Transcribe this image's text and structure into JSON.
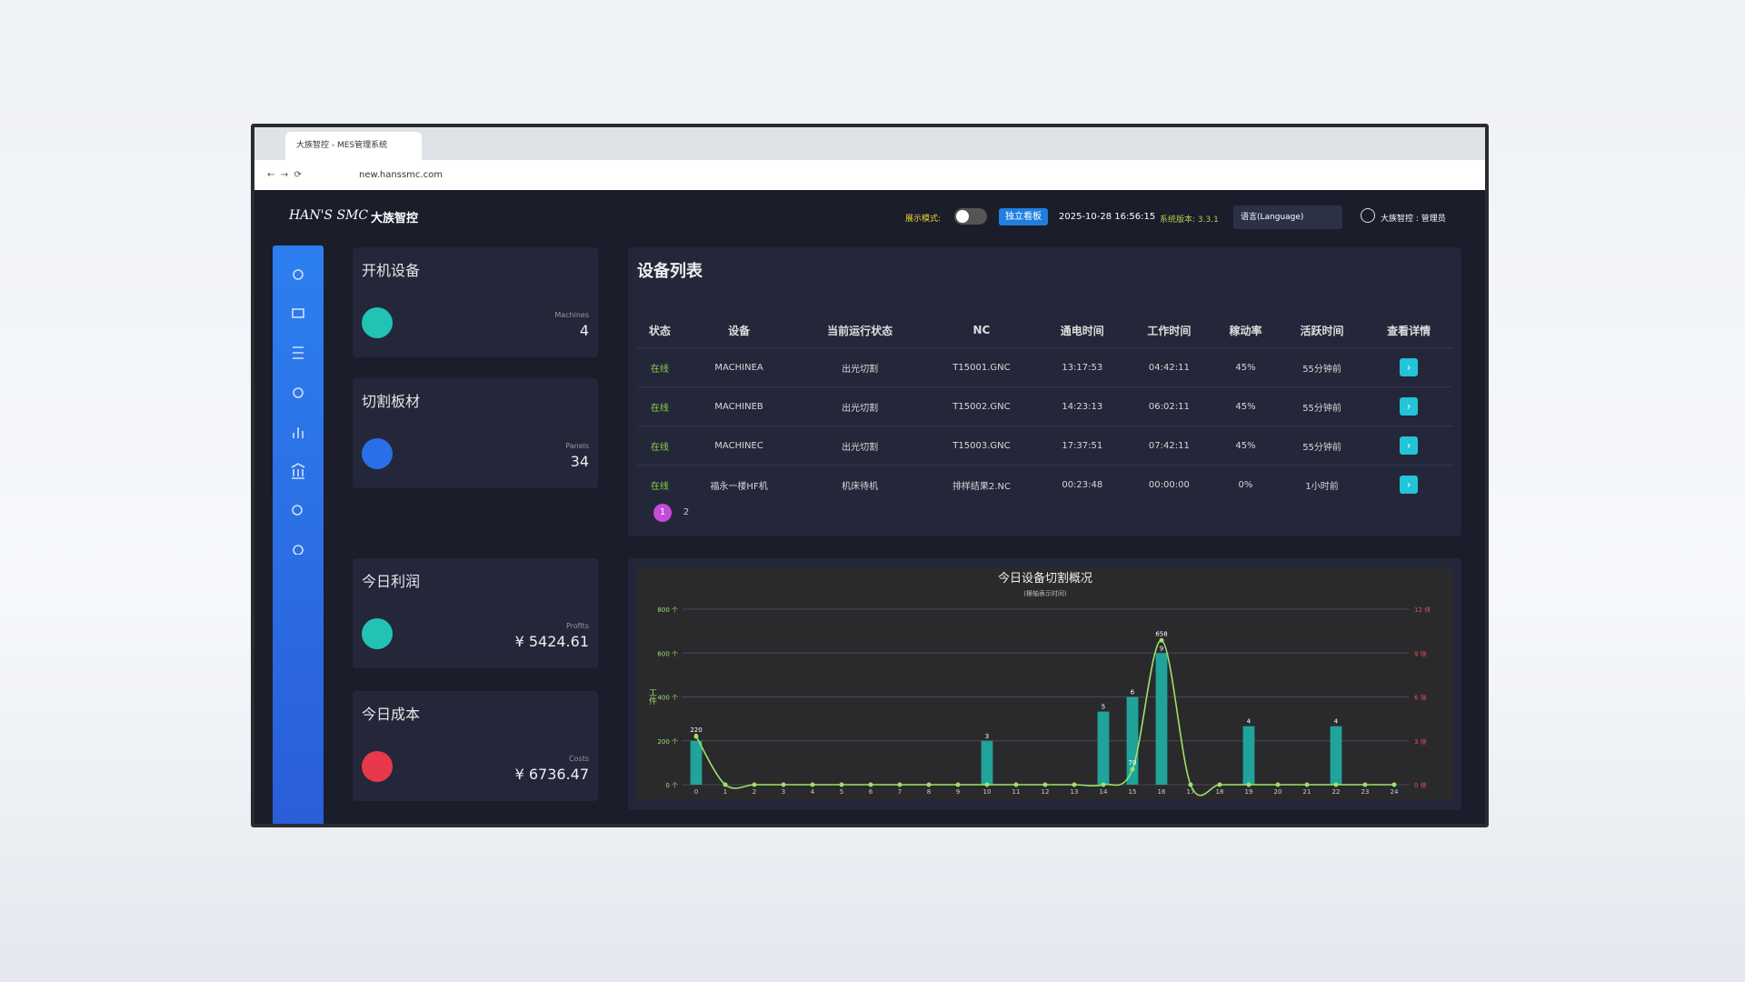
{
  "browser": {
    "tab_title": "大族智控 - MES管理系统",
    "url": "new.hanssmc.com"
  },
  "header": {
    "logo": "HAN'S SMC",
    "logo_cn": "大族智控",
    "display_mode": "展示模式:",
    "board_button": "独立看板",
    "datetime": "2025-10-28 16:56:15",
    "version": "系统版本: 3.3.1",
    "language": "语言(Language)",
    "user": "大族智控 : 管理员"
  },
  "cards": [
    {
      "title": "开机设备",
      "label": "Machines",
      "value": "4"
    },
    {
      "title": "切割板材",
      "label": "Panels",
      "value": "34"
    },
    {
      "title": "今日利润",
      "label": "Profits",
      "value": "¥ 5424.61"
    },
    {
      "title": "今日成本",
      "label": "Costs",
      "value": "¥ 6736.47"
    }
  ],
  "table": {
    "title": "设备列表",
    "columns": [
      "状态",
      "设备",
      "当前运行状态",
      "NC",
      "通电时间",
      "工作时间",
      "稼动率",
      "活跃时间",
      "查看详情"
    ],
    "rows": [
      [
        "在线",
        "MACHINEA",
        "出光切割",
        "T15001.GNC",
        "13:17:53",
        "04:42:11",
        "45%",
        "55分钟前"
      ],
      [
        "在线",
        "MACHINEB",
        "出光切割",
        "T15002.GNC",
        "14:23:13",
        "06:02:11",
        "45%",
        "55分钟前"
      ],
      [
        "在线",
        "MACHINEC",
        "出光切割",
        "T15003.GNC",
        "17:37:51",
        "07:42:11",
        "45%",
        "55分钟前"
      ],
      [
        "在线",
        "福永一楼HF机",
        "机床待机",
        "排样结果2.NC",
        "00:23:48",
        "00:00:00",
        "0%",
        "1小时前"
      ]
    ],
    "pages": [
      "1",
      "2"
    ]
  },
  "chart_data": {
    "type": "bar-line",
    "title": "今日设备切割概况",
    "subtitle": "(横轴表示时间)",
    "y_label": "工件",
    "categories": [
      "0",
      "1",
      "2",
      "3",
      "4",
      "5",
      "6",
      "7",
      "8",
      "9",
      "10",
      "11",
      "12",
      "13",
      "14",
      "15",
      "16",
      "17",
      "18",
      "19",
      "20",
      "21",
      "22",
      "23",
      "24"
    ],
    "series": [
      {
        "type": "bar",
        "axis": "y2",
        "color": "#1fa39a",
        "values": [
          3,
          0,
          0,
          0,
          0,
          0,
          0,
          0,
          0,
          0,
          3,
          0,
          0,
          0,
          5,
          6,
          9,
          0,
          0,
          4,
          0,
          0,
          4,
          0,
          0
        ]
      },
      {
        "type": "line",
        "axis": "y",
        "color": "#9be36b",
        "values": [
          220,
          0,
          0,
          0,
          0,
          0,
          0,
          0,
          0,
          0,
          0,
          0,
          0,
          0,
          0,
          70,
          658,
          0,
          0,
          0,
          0,
          0,
          0,
          0,
          0
        ]
      }
    ],
    "ylim": [
      0,
      800
    ],
    "yticks": [
      {
        "value": 0,
        "label": "0 个"
      },
      {
        "value": 200,
        "label": "200 个"
      },
      {
        "value": 400,
        "label": "400 个"
      },
      {
        "value": 600,
        "label": "600 个"
      },
      {
        "value": 800,
        "label": "800 个"
      }
    ],
    "y2lim": [
      0,
      12
    ],
    "y2ticks": [
      {
        "value": 0,
        "label": "0 块"
      },
      {
        "value": 3,
        "label": "3 块"
      },
      {
        "value": 6,
        "label": "6 块"
      },
      {
        "value": 9,
        "label": "9 块"
      },
      {
        "value": 12,
        "label": "12 块"
      }
    ],
    "grid": true
  }
}
